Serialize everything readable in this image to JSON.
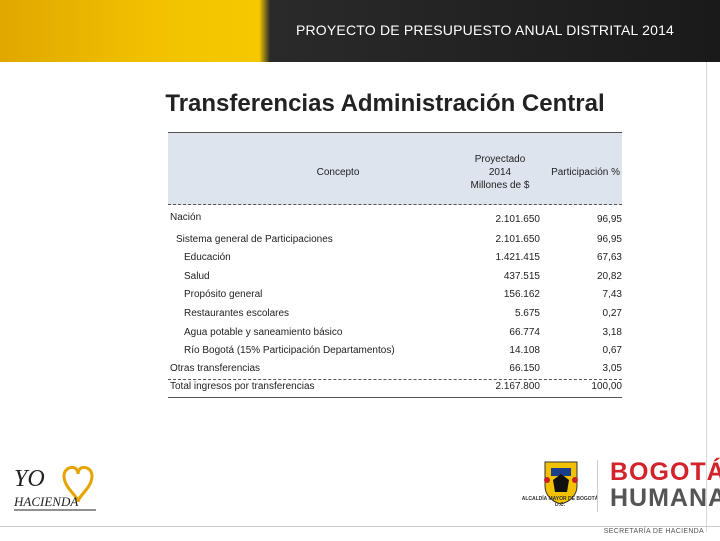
{
  "banner": {
    "title": "PROYECTO DE PRESUPUESTO ANUAL DISTRITAL 2014"
  },
  "page": {
    "title": "Transferencias Administración Central"
  },
  "table": {
    "headers": {
      "concepto": "Concepto",
      "proyectado_1": "Proyectado",
      "proyectado_2": "2014",
      "proyectado_3": "Millones de $",
      "participacion": "Participación %"
    },
    "rows": [
      {
        "label": "Nación",
        "value": "2.101.650",
        "pct": "96,95"
      },
      {
        "label": "Sistema general de Participaciones",
        "value": "2.101.650",
        "pct": "96,95"
      },
      {
        "label": "Educación",
        "value": "1.421.415",
        "pct": "67,63"
      },
      {
        "label": "Salud",
        "value": "437.515",
        "pct": "20,82"
      },
      {
        "label": "Propósito general",
        "value": "156.162",
        "pct": "7,43"
      },
      {
        "label": "Restaurantes escolares",
        "value": "5.675",
        "pct": "0,27"
      },
      {
        "label": "Agua potable y saneamiento básico",
        "value": "66.774",
        "pct": "3,18"
      },
      {
        "label": "Río Bogotá (15% Participación Departamentos)",
        "value": "14.108",
        "pct": "0,67"
      },
      {
        "label": "Otras transferencias",
        "value": "66.150",
        "pct": "3,05"
      },
      {
        "label": "Total ingresos por transferencias",
        "value": "2.167.800",
        "pct": "100,00"
      }
    ]
  },
  "footer": {
    "yo_logo": {
      "line1": "YO",
      "line2": "HACIENDA"
    },
    "crest_caption": "ALCALDÍA MAYOR DE BOGOTÁ D.C.",
    "bogota_line1": "BOGOTÁ",
    "bogota_line2": "HUMANA",
    "secretaria": "SECRETARÍA DE HACIENDA"
  },
  "colors": {
    "banner_yellow": "#f2c200",
    "banner_dark": "#1a1a1a",
    "header_fill": "#dde4ee",
    "bogota_red": "#d2232a"
  }
}
